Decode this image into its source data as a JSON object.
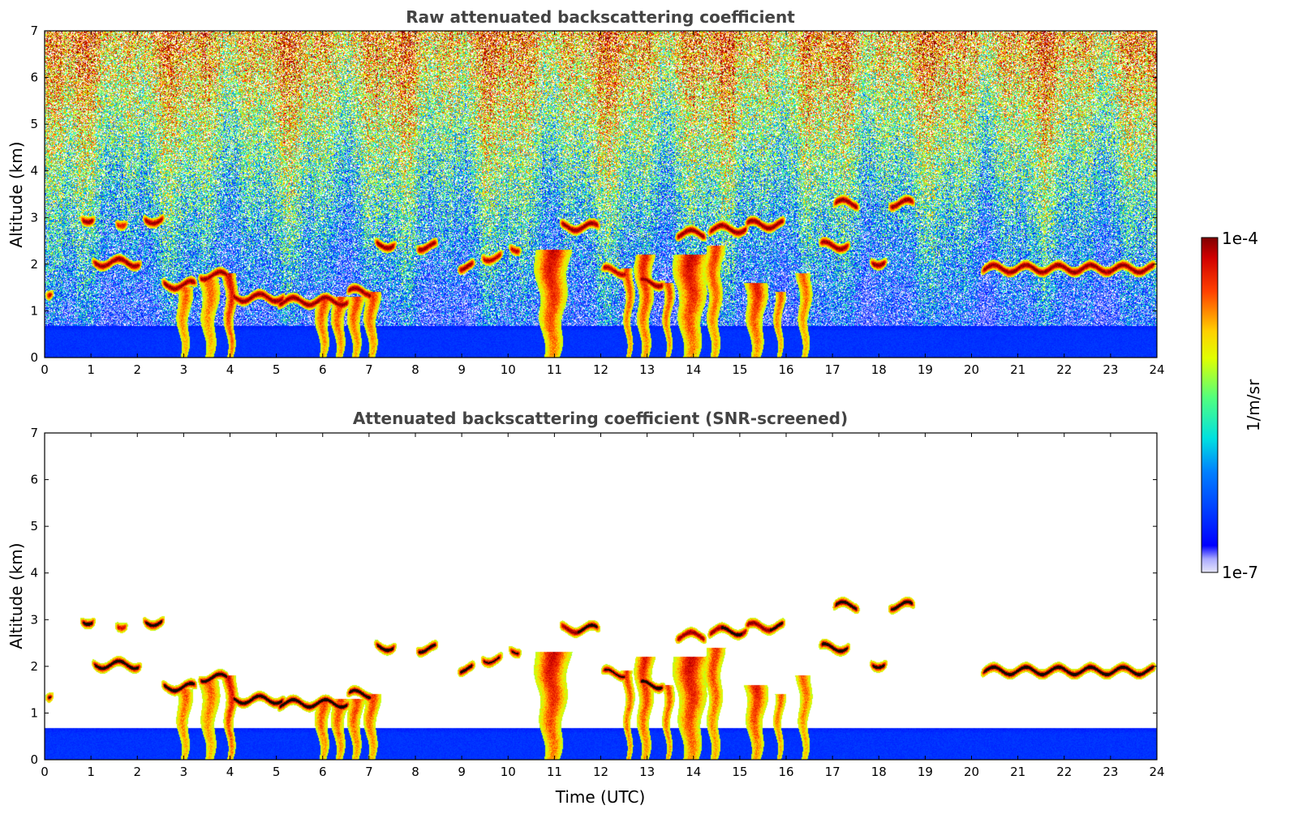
{
  "chart_data": [
    {
      "type": "heatmap",
      "title": "Raw attenuated backscattering coefficient",
      "xlabel": "",
      "ylabel": "Altitude (km)",
      "xlim": [
        0,
        24
      ],
      "ylim": [
        0,
        7
      ],
      "x_ticks": [
        0,
        1,
        2,
        3,
        4,
        5,
        6,
        7,
        8,
        9,
        10,
        11,
        12,
        13,
        14,
        15,
        16,
        17,
        18,
        19,
        20,
        21,
        22,
        23,
        24
      ],
      "y_ticks": [
        0,
        1,
        2,
        3,
        4,
        5,
        6,
        7
      ],
      "screened": false
    },
    {
      "type": "heatmap",
      "title": "Attenuated backscattering coefficient (SNR-screened)",
      "xlabel": "Time (UTC)",
      "ylabel": "Altitude (km)",
      "xlim": [
        0,
        24
      ],
      "ylim": [
        0,
        7
      ],
      "x_ticks": [
        0,
        1,
        2,
        3,
        4,
        5,
        6,
        7,
        8,
        9,
        10,
        11,
        12,
        13,
        14,
        15,
        16,
        17,
        18,
        19,
        20,
        21,
        22,
        23,
        24
      ],
      "y_ticks": [
        0,
        1,
        2,
        3,
        4,
        5,
        6,
        7
      ],
      "screened": true
    }
  ],
  "colorbar": {
    "label": "1/m/sr",
    "max_label": "1e-4",
    "min_label": "1e-7",
    "scale": "log",
    "colormap": "jet"
  },
  "features": {
    "cloud_layers": [
      {
        "t0": 0.0,
        "t1": 0.2,
        "alt": 1.4,
        "strength": 0.9
      },
      {
        "t0": 0.75,
        "t1": 1.1,
        "alt": 2.98,
        "strength": 1.0
      },
      {
        "t0": 1.0,
        "t1": 2.1,
        "alt": 2.03,
        "strength": 1.0
      },
      {
        "t0": 1.5,
        "t1": 1.8,
        "alt": 2.9,
        "strength": 0.8
      },
      {
        "t0": 2.1,
        "t1": 2.6,
        "alt": 2.95,
        "strength": 1.0
      },
      {
        "t0": 2.5,
        "t1": 3.3,
        "alt": 1.55,
        "strength": 1.0
      },
      {
        "t0": 3.3,
        "t1": 4.0,
        "alt": 1.75,
        "strength": 1.0
      },
      {
        "t0": 4.0,
        "t1": 5.2,
        "alt": 1.28,
        "strength": 1.0
      },
      {
        "t0": 5.0,
        "t1": 6.6,
        "alt": 1.2,
        "strength": 1.0
      },
      {
        "t0": 6.5,
        "t1": 7.1,
        "alt": 1.4,
        "strength": 1.0
      },
      {
        "t0": 7.1,
        "t1": 7.6,
        "alt": 2.42,
        "strength": 1.0
      },
      {
        "t0": 8.0,
        "t1": 8.5,
        "alt": 2.38,
        "strength": 1.0
      },
      {
        "t0": 8.9,
        "t1": 9.3,
        "alt": 1.95,
        "strength": 1.0
      },
      {
        "t0": 9.4,
        "t1": 9.9,
        "alt": 2.15,
        "strength": 0.9
      },
      {
        "t0": 10.0,
        "t1": 10.3,
        "alt": 2.35,
        "strength": 0.9
      },
      {
        "t0": 11.1,
        "t1": 12.0,
        "alt": 2.8,
        "strength": 1.0
      },
      {
        "t0": 12.0,
        "t1": 12.6,
        "alt": 1.85,
        "strength": 0.9
      },
      {
        "t0": 12.8,
        "t1": 13.4,
        "alt": 1.6,
        "strength": 1.0
      },
      {
        "t0": 13.6,
        "t1": 14.3,
        "alt": 2.65,
        "strength": 1.0
      },
      {
        "t0": 14.3,
        "t1": 15.2,
        "alt": 2.75,
        "strength": 1.0
      },
      {
        "t0": 15.1,
        "t1": 16.0,
        "alt": 2.85,
        "strength": 1.0
      },
      {
        "t0": 16.7,
        "t1": 17.4,
        "alt": 2.4,
        "strength": 1.0
      },
      {
        "t0": 17.0,
        "t1": 17.6,
        "alt": 3.3,
        "strength": 1.0
      },
      {
        "t0": 17.8,
        "t1": 18.2,
        "alt": 2.05,
        "strength": 1.0
      },
      {
        "t0": 18.2,
        "t1": 18.8,
        "alt": 3.3,
        "strength": 1.0
      },
      {
        "t0": 20.2,
        "t1": 24.0,
        "alt": 1.9,
        "strength": 1.0
      }
    ],
    "plumes": [
      {
        "t": 3.0,
        "top": 1.5,
        "width": 0.22,
        "strength": 0.7
      },
      {
        "t": 3.55,
        "top": 1.7,
        "width": 0.28,
        "strength": 0.7
      },
      {
        "t": 4.0,
        "top": 1.8,
        "width": 0.18,
        "strength": 1.0
      },
      {
        "t": 6.0,
        "top": 1.3,
        "width": 0.22,
        "strength": 0.8
      },
      {
        "t": 6.35,
        "top": 1.3,
        "width": 0.22,
        "strength": 0.8
      },
      {
        "t": 6.7,
        "top": 1.3,
        "width": 0.22,
        "strength": 0.8
      },
      {
        "t": 7.05,
        "top": 1.4,
        "width": 0.22,
        "strength": 0.8
      },
      {
        "t": 10.95,
        "top": 2.3,
        "width": 0.45,
        "strength": 1.0
      },
      {
        "t": 12.6,
        "top": 1.9,
        "width": 0.15,
        "strength": 0.8
      },
      {
        "t": 12.95,
        "top": 2.2,
        "width": 0.25,
        "strength": 0.9
      },
      {
        "t": 13.45,
        "top": 1.6,
        "width": 0.15,
        "strength": 0.8
      },
      {
        "t": 13.95,
        "top": 2.2,
        "width": 0.45,
        "strength": 1.0
      },
      {
        "t": 14.45,
        "top": 2.4,
        "width": 0.25,
        "strength": 0.8
      },
      {
        "t": 15.35,
        "top": 1.6,
        "width": 0.3,
        "strength": 0.9
      },
      {
        "t": 15.85,
        "top": 1.4,
        "width": 0.15,
        "strength": 0.7
      },
      {
        "t": 16.4,
        "top": 1.8,
        "width": 0.2,
        "strength": 0.7
      }
    ]
  }
}
